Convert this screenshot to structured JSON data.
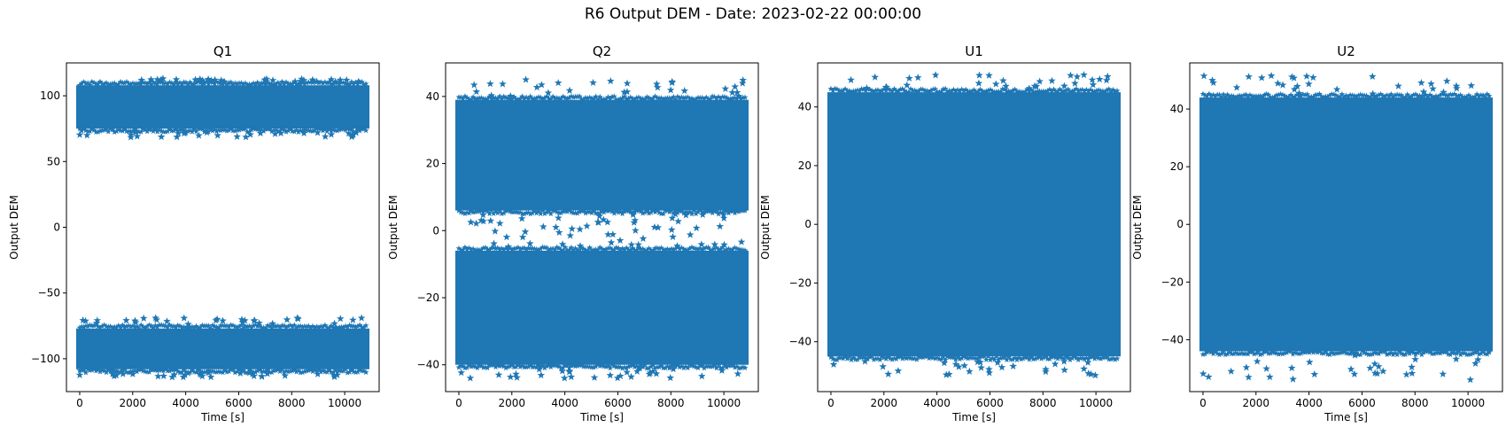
{
  "figure": {
    "suptitle": "R6 Output DEM - Date: 2023-02-22 00:00:00"
  },
  "chart_data": [
    {
      "type": "scatter",
      "marker": "star",
      "color": "#1f77b4",
      "title": "Q1",
      "xlabel": "Time [s]",
      "ylabel": "Output DEM",
      "xlim": [
        -500,
        11300
      ],
      "ylim": [
        -125,
        125
      ],
      "xticks": [
        0,
        2000,
        4000,
        6000,
        8000,
        10000
      ],
      "yticks": [
        -100,
        -50,
        0,
        50,
        100
      ],
      "x_range": [
        0,
        10800
      ],
      "bands": [
        {
          "name": "upper",
          "y_min": 75,
          "y_max": 108,
          "peak_top": 113,
          "peak_bottom": 68
        },
        {
          "name": "lower",
          "y_min": -108,
          "y_max": -77,
          "peak_top": -69,
          "peak_bottom": -114
        }
      ]
    },
    {
      "type": "scatter",
      "marker": "star",
      "color": "#1f77b4",
      "title": "Q2",
      "xlabel": "Time [s]",
      "ylabel": "Output DEM",
      "xlim": [
        -500,
        11300
      ],
      "ylim": [
        -48,
        50
      ],
      "xticks": [
        0,
        2000,
        4000,
        6000,
        8000,
        10000
      ],
      "yticks": [
        -40,
        -20,
        0,
        20,
        40
      ],
      "x_range": [
        0,
        10800
      ],
      "bands": [
        {
          "name": "upper",
          "y_min": 6,
          "y_max": 39,
          "peak_top": 45,
          "peak_bottom": 0
        },
        {
          "name": "lower",
          "y_min": -40,
          "y_max": -6,
          "peak_top": 1,
          "peak_bottom": -44
        }
      ]
    },
    {
      "type": "scatter",
      "marker": "star",
      "color": "#1f77b4",
      "title": "U1",
      "xlabel": "Time [s]",
      "ylabel": "Output DEM",
      "xlim": [
        -500,
        11300
      ],
      "ylim": [
        -57,
        55
      ],
      "xticks": [
        0,
        2000,
        4000,
        6000,
        8000,
        10000
      ],
      "yticks": [
        -40,
        -20,
        0,
        20,
        40
      ],
      "x_range": [
        0,
        10800
      ],
      "bands": [
        {
          "name": "main",
          "y_min": -45,
          "y_max": 45,
          "peak_top": 51,
          "peak_bottom": -52
        }
      ]
    },
    {
      "type": "scatter",
      "marker": "star",
      "color": "#1f77b4",
      "title": "U2",
      "xlabel": "Time [s]",
      "ylabel": "Output DEM",
      "xlim": [
        -500,
        11300
      ],
      "ylim": [
        -58,
        56
      ],
      "xticks": [
        0,
        2000,
        4000,
        6000,
        8000,
        10000
      ],
      "yticks": [
        -40,
        -20,
        0,
        20,
        40
      ],
      "x_range": [
        0,
        10800
      ],
      "bands": [
        {
          "name": "main",
          "y_min": -44,
          "y_max": 44,
          "peak_top": 52,
          "peak_bottom": -54
        }
      ]
    }
  ]
}
